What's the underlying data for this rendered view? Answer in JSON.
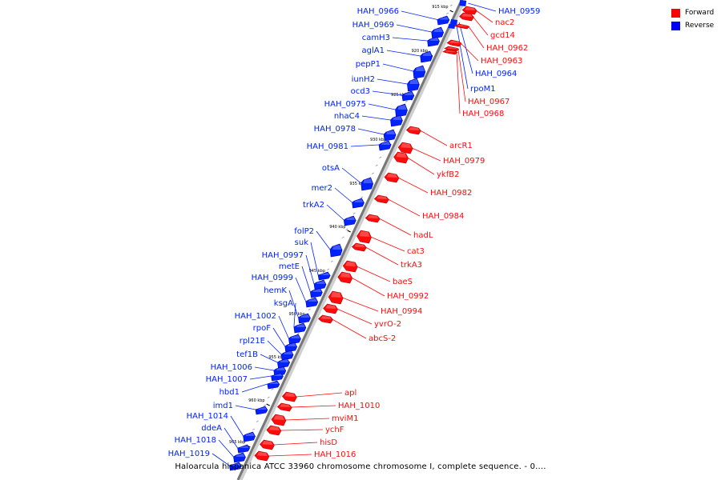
{
  "legend": {
    "forward": {
      "label": "Forward",
      "color": "#ff0000"
    },
    "reverse": {
      "label": "Reverse",
      "color": "#0000ff"
    }
  },
  "caption": "Haloarcula hispanica ATCC 33960 chromosome chromosome I, complete sequence. - 0....",
  "axis": {
    "labels": [
      "915 kbp",
      "920 kbp",
      "925 kbp",
      "930 kbp",
      "935 kbp",
      "940 kbp",
      "945 kbp",
      "950 kbp",
      "955 kbp",
      "960 kbp",
      "965 kbp"
    ]
  },
  "reverse_genes": [
    {
      "label": "HAH_0966"
    },
    {
      "label": "HAH_0969"
    },
    {
      "label": "camH3"
    },
    {
      "label": "aglA1"
    },
    {
      "label": "pepP1"
    },
    {
      "label": "iunH2"
    },
    {
      "label": "ocd3"
    },
    {
      "label": "HAH_0975"
    },
    {
      "label": "nhaC4"
    },
    {
      "label": "HAH_0978"
    },
    {
      "label": "HAH_0981"
    },
    {
      "label": "otsA"
    },
    {
      "label": "mer2"
    },
    {
      "label": "trkA2"
    },
    {
      "label": "folP2"
    },
    {
      "label": "suk"
    },
    {
      "label": "HAH_0997"
    },
    {
      "label": "metE"
    },
    {
      "label": "HAH_0999"
    },
    {
      "label": "hemK"
    },
    {
      "label": "ksgA"
    },
    {
      "label": "HAH_1002"
    },
    {
      "label": "rpoF"
    },
    {
      "label": "rpl21E"
    },
    {
      "label": "tef1B"
    },
    {
      "label": "HAH_1006"
    },
    {
      "label": "HAH_1007"
    },
    {
      "label": "hbd1"
    },
    {
      "label": "imd1"
    },
    {
      "label": "HAH_1014"
    },
    {
      "label": "ddeA"
    },
    {
      "label": "HAH_1018"
    },
    {
      "label": "HAH_1019"
    },
    {
      "label": "HAH_0959"
    },
    {
      "label": "HAH_0964"
    },
    {
      "label": "rpoM1"
    }
  ],
  "forward_genes": [
    {
      "label": "nac2"
    },
    {
      "label": "gcd14"
    },
    {
      "label": "HAH_0962"
    },
    {
      "label": "HAH_0963"
    },
    {
      "label": "HAH_0967"
    },
    {
      "label": "HAH_0968"
    },
    {
      "label": "arcR1"
    },
    {
      "label": "HAH_0979"
    },
    {
      "label": "ykfB2"
    },
    {
      "label": "HAH_0982"
    },
    {
      "label": "HAH_0984"
    },
    {
      "label": "hadL"
    },
    {
      "label": "cat3"
    },
    {
      "label": "trkA3"
    },
    {
      "label": "baeS"
    },
    {
      "label": "HAH_0992"
    },
    {
      "label": "HAH_0994"
    },
    {
      "label": "yvrO-2"
    },
    {
      "label": "abcS-2"
    },
    {
      "label": "apl"
    },
    {
      "label": "HAH_1010"
    },
    {
      "label": "mviM1"
    },
    {
      "label": "ychF"
    },
    {
      "label": "hisD"
    },
    {
      "label": "HAH_1016"
    }
  ]
}
